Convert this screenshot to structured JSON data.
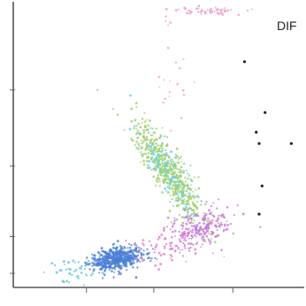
{
  "chart_data": {
    "type": "scatter",
    "title": "DIF",
    "xlabel": "",
    "ylabel": "",
    "xlim": [
      0,
      100
    ],
    "ylim": [
      0,
      100
    ],
    "grid": false,
    "x_ticks": [
      25,
      48,
      75
    ],
    "y_ticks": [
      5,
      18,
      43,
      70
    ],
    "series": [
      {
        "color": "#4b7fd6",
        "cx": 35,
        "cy": 10,
        "sx": 4.5,
        "sy": 2.0,
        "rot": 8,
        "n": 520
      },
      {
        "color": "#62c3e0",
        "cx": 20,
        "cy": 6,
        "sx": 4.0,
        "sy": 2.0,
        "rot": 0,
        "n": 40
      },
      {
        "color": "#9fd06a",
        "cx": 53,
        "cy": 41,
        "sx": 2.6,
        "sy": 10.5,
        "rot": 32,
        "n": 560
      },
      {
        "color": "#68cfe8",
        "cx": 53,
        "cy": 41,
        "sx": 2.4,
        "sy": 9.0,
        "rot": 32,
        "n": 120
      },
      {
        "color": "#c978d8",
        "cx": 64,
        "cy": 21,
        "sx": 6.0,
        "sy": 3.2,
        "rot": 22,
        "n": 220
      },
      {
        "color": "#e27fc6",
        "cx": 52,
        "cy": 14,
        "sx": 6.0,
        "sy": 3.0,
        "rot": 18,
        "n": 70
      },
      {
        "color": "#e9a0cf",
        "cx": 68,
        "cy": 98,
        "sx": 7.0,
        "sy": 0.7,
        "rot": 0,
        "n": 60
      },
      {
        "color": "#f2a9c6",
        "cx": 54,
        "cy": 75,
        "sx": 3.5,
        "sy": 10.0,
        "rot": 0,
        "n": 22
      },
      {
        "color": "#222222",
        "points": [
          [
            86,
            62
          ],
          [
            83,
            55
          ],
          [
            84,
            51
          ],
          [
            95,
            51
          ],
          [
            85,
            36
          ],
          [
            84,
            26
          ],
          [
            79,
            80
          ]
        ]
      }
    ]
  }
}
